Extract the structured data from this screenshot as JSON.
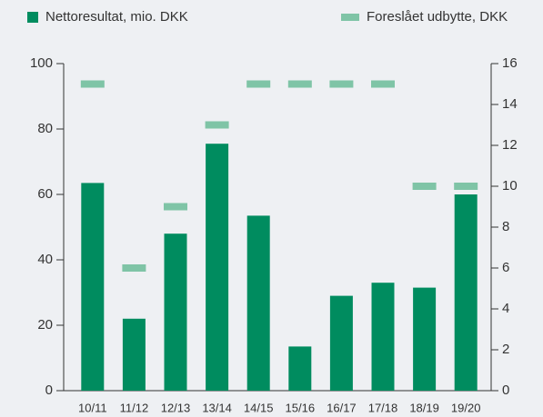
{
  "chart_data": {
    "type": "bar",
    "categories": [
      "10/11",
      "11/12",
      "12/13",
      "13/14",
      "14/15",
      "15/16",
      "16/17",
      "17/18",
      "18/19",
      "19/20"
    ],
    "series": [
      {
        "name": "Nettoresultat, mio. DKK",
        "color": "#008c5f",
        "values": [
          63.5,
          22,
          48,
          75.5,
          53.5,
          13.5,
          29,
          33,
          31.5,
          60
        ]
      },
      {
        "name": "Foreslået udbytte, DKK",
        "color": "#7fc4a6",
        "axis": "y2",
        "values": [
          15,
          6,
          9,
          13,
          15,
          15,
          15,
          15,
          10,
          10
        ]
      }
    ],
    "ylim": [
      0,
      100
    ],
    "yticks": [
      0,
      20,
      40,
      60,
      80,
      100
    ],
    "y2lim": [
      0,
      16
    ],
    "y2ticks": [
      0,
      2,
      4,
      6,
      8,
      10,
      12,
      14,
      16
    ],
    "grid": false
  }
}
